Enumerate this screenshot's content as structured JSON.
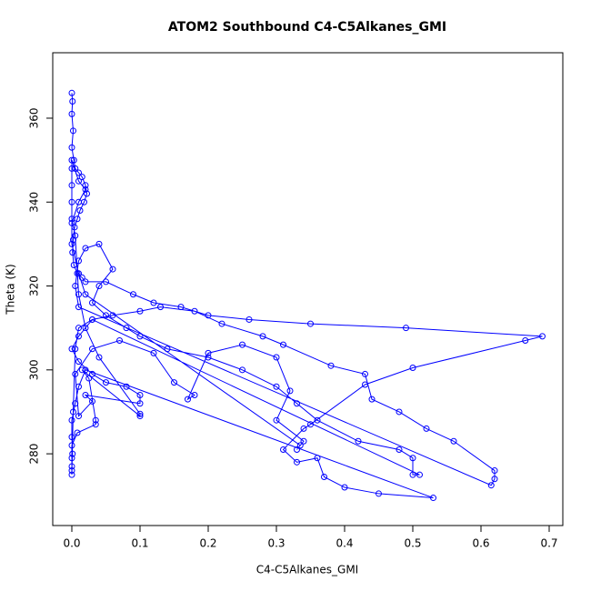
{
  "chart_data": {
    "type": "line",
    "markers": true,
    "title": "ATOM2 Southbound C4-C5Alkanes_GMI",
    "x_label": "C4-C5Alkanes_GMI",
    "y_label": "Theta (K)",
    "color": "#0000ff",
    "x": [
      0,
      0.001,
      0,
      0.002,
      0,
      0.003,
      0.005,
      0.01,
      0.015,
      0.02,
      0.022,
      0.018,
      0.012,
      0.008,
      0.004,
      0.002,
      0.001,
      0.003,
      0.008,
      0.015,
      0.02,
      0.05,
      0.09,
      0.12,
      0.16,
      0.2,
      0.26,
      0.35,
      0.49,
      0.69,
      0.665,
      0.5,
      0.43,
      0.35,
      0.34,
      0.31,
      0.33,
      0.36,
      0.37,
      0.4,
      0.45,
      0.53,
      0.02,
      0.01,
      0.005,
      0,
      0,
      0.001,
      0,
      0,
      0.002,
      0.005,
      0.01,
      0.03,
      0.06,
      0.1,
      0.13,
      0.18,
      0.22,
      0.28,
      0.31,
      0.38,
      0.43,
      0.44,
      0.48,
      0.52,
      0.56,
      0.62,
      0.62,
      0.615,
      0.01,
      0.005,
      0.01,
      0.02,
      0.04,
      0.06,
      0.04,
      0.03,
      0.05,
      0.08,
      0.1,
      0.14,
      0.2,
      0.25,
      0.3,
      0.33,
      0.36,
      0.42,
      0.48,
      0.5,
      0.5,
      0.51,
      0.03,
      0.01,
      0,
      0.01,
      0.03,
      0.05,
      0.08,
      0.1,
      0.1,
      0.02,
      0.03,
      0.01,
      0.005,
      0.03,
      0.07,
      0.12,
      0.15,
      0.18,
      0.17,
      0.2,
      0.25,
      0.3,
      0.32,
      0.3,
      0.34,
      0.33,
      0.335,
      0.02,
      0.01,
      0,
      0,
      0.01,
      0.02,
      0.01,
      0,
      0,
      0,
      0,
      0,
      0.005,
      0.01,
      0.02,
      0.04,
      0.1,
      0.1,
      0.015,
      0.025,
      0.035,
      0.035,
      0.008,
      0,
      0,
      0
    ],
    "values": [
      366,
      364,
      361,
      357,
      353,
      350,
      348,
      347,
      346,
      344,
      342,
      340,
      338,
      336,
      334,
      331,
      328,
      325,
      323,
      322,
      321,
      321,
      318,
      316,
      315,
      313,
      312,
      311,
      310,
      308,
      307,
      300.5,
      296.5,
      287,
      286,
      281,
      278,
      279,
      274.5,
      272,
      270.5,
      269.5,
      300,
      296,
      292,
      288,
      284,
      280,
      277,
      275,
      290,
      305,
      310,
      312,
      313,
      314,
      315,
      314,
      311,
      308,
      306,
      301,
      299,
      293,
      290,
      286,
      283,
      276,
      274,
      272.5,
      315,
      320,
      326,
      329,
      330,
      324,
      320,
      316,
      313,
      310,
      308,
      305,
      303,
      300,
      296,
      292,
      288,
      283,
      281,
      279,
      275,
      275,
      312,
      308,
      305,
      302,
      299,
      297,
      296,
      294,
      292,
      294,
      292.5,
      289,
      299,
      305,
      307,
      304,
      297,
      294,
      293,
      304,
      306,
      303,
      295,
      288,
      283,
      281,
      282,
      318,
      323,
      330,
      335,
      340,
      343,
      345,
      350,
      348,
      344,
      340,
      336,
      332,
      318,
      310,
      303,
      289.5,
      289,
      300,
      298,
      288,
      287,
      285,
      282,
      279,
      276
    ],
    "xlim": [
      -0.028,
      0.72
    ],
    "ylim": [
      262.9,
      375.6
    ],
    "xticks": [
      {
        "value": 0,
        "label": "0.0"
      },
      0.1,
      0.2,
      0.3,
      0.4,
      0.5,
      0.6,
      0.7
    ],
    "yticks": [
      280,
      300,
      320,
      340,
      360
    ]
  }
}
